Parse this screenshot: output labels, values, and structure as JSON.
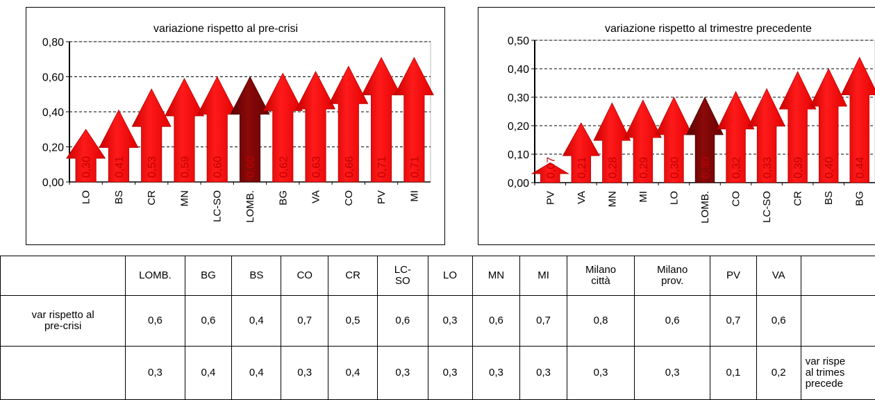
{
  "chart_data": [
    {
      "type": "bar",
      "title": "variazione rispetto al pre-crisi",
      "categories": [
        "LO",
        "BS",
        "CR",
        "MN",
        "LC-SO",
        "LOMB.",
        "BG",
        "VA",
        "CO",
        "PV",
        "MI"
      ],
      "values": [
        0.3,
        0.41,
        0.53,
        0.59,
        0.6,
        0.6,
        0.62,
        0.63,
        0.66,
        0.71,
        0.71
      ],
      "value_labels": [
        "0,30",
        "0,41",
        "0,53",
        "0,59",
        "0,60",
        "0,60",
        "0,62",
        "0,63",
        "0,66",
        "0,71",
        "0,71"
      ],
      "ylim": [
        0,
        0.8
      ],
      "yticks": [
        "0,00",
        "0,20",
        "0,40",
        "0,60",
        "0,80"
      ],
      "ytick_values": [
        0,
        0.2,
        0.4,
        0.6,
        0.8
      ],
      "highlight": "LOMB.",
      "grid": true,
      "xlabel": "",
      "ylabel": ""
    },
    {
      "type": "bar",
      "title": "variazione rispetto al trimestre precedente",
      "categories": [
        "PV",
        "VA",
        "MN",
        "MI",
        "LO",
        "LOMB.",
        "CO",
        "LC-SO",
        "CR",
        "BS",
        "BG"
      ],
      "values": [
        0.07,
        0.21,
        0.28,
        0.29,
        0.3,
        0.3,
        0.32,
        0.33,
        0.39,
        0.4,
        0.44
      ],
      "value_labels": [
        "0,07",
        "0,21",
        "0,28",
        "0,29",
        "0,30",
        "0,30",
        "0,32",
        "0,33",
        "0,39",
        "0,40",
        "0,44"
      ],
      "ylim": [
        0,
        0.5
      ],
      "yticks": [
        "0,00",
        "0,10",
        "0,20",
        "0,30",
        "0,40",
        "0,50"
      ],
      "ytick_values": [
        0,
        0.1,
        0.2,
        0.3,
        0.4,
        0.5
      ],
      "highlight": "LOMB.",
      "grid": true,
      "xlabel": "",
      "ylabel": ""
    }
  ],
  "colors": {
    "arrow": "#ff0000",
    "arrow_dark": "#b80000",
    "highlight": "#7a0000",
    "highlight_dark": "#4a0000",
    "value_text": "#c00000"
  },
  "table": {
    "headers": [
      "",
      "LOMB.",
      "BG",
      "BS",
      "CO",
      "CR",
      "LC-\nSO",
      "LO",
      "MN",
      "MI",
      "Milano\ncittà",
      "Milano\nprov.",
      "PV",
      "VA",
      ""
    ],
    "rows": [
      {
        "label": "var rispetto al\npre-crisi",
        "values": [
          "0,6",
          "0,6",
          "0,4",
          "0,7",
          "0,5",
          "0,6",
          "0,3",
          "0,6",
          "0,7",
          "0,8",
          "0,6",
          "0,7",
          "0,6"
        ],
        "trailing": ""
      },
      {
        "label": "",
        "values": [
          "0,3",
          "0,4",
          "0,4",
          "0,3",
          "0,4",
          "0,3",
          "0,3",
          "0,3",
          "0,3",
          "0,3",
          "0,3",
          "0,1",
          "0,2"
        ],
        "trailing": "var rispe\nal trimes\nprecede"
      }
    ]
  }
}
